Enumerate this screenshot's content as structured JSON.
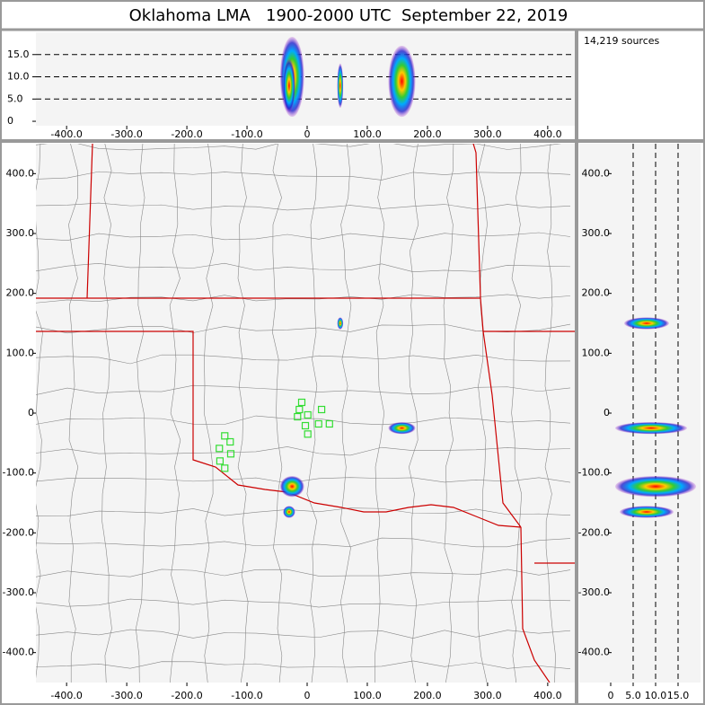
{
  "chart_data": {
    "type": "lma",
    "title": "Oklahoma LMA   1900-2000 UTC  September 22, 2019",
    "annotation": "14,219 sources",
    "xlim": [
      -451,
      445
    ],
    "ylim": [
      -450,
      450
    ],
    "top_altlim": [
      -1,
      20
    ],
    "side_altlim": [
      -7,
      20
    ],
    "xticks": [
      {
        "value": -400,
        "label": "-400.0"
      },
      {
        "value": -300,
        "label": "-300.0"
      },
      {
        "value": -200,
        "label": "-200.0"
      },
      {
        "value": -100,
        "label": "-100.0"
      },
      0,
      {
        "value": 100,
        "label": "100.0"
      },
      {
        "value": 200,
        "label": "200.0"
      },
      {
        "value": 300,
        "label": "300.0"
      },
      {
        "value": 400,
        "label": "400.0"
      }
    ],
    "yticks": [
      {
        "value": -400,
        "label": "-400.0"
      },
      {
        "value": -300,
        "label": "-300.0"
      },
      {
        "value": -200,
        "label": "-200.0"
      },
      {
        "value": -100,
        "label": "-100.0"
      },
      0,
      {
        "value": 100,
        "label": "100.0"
      },
      {
        "value": 200,
        "label": "200.0"
      },
      {
        "value": 300,
        "label": "300.0"
      },
      {
        "value": 400,
        "label": "400.0"
      }
    ],
    "altticks": [
      0,
      {
        "value": 5,
        "label": "5.0"
      },
      {
        "value": 10,
        "label": "10.0"
      },
      {
        "value": 15,
        "label": "15.0"
      }
    ],
    "alt_gridlines": [
      5,
      10,
      15
    ],
    "clusters": [
      {
        "xmin": -45,
        "xmax": -5,
        "ymin": -140,
        "ymax": -105,
        "altmin": 1,
        "altmax": 19
      },
      {
        "xmin": -40,
        "xmax": -20,
        "ymin": -175,
        "ymax": -155,
        "altmin": 2,
        "altmax": 14
      },
      {
        "xmin": 135,
        "xmax": 180,
        "ymin": -35,
        "ymax": -15,
        "altmin": 1,
        "altmax": 17
      },
      {
        "xmin": 50,
        "xmax": 60,
        "ymin": 140,
        "ymax": 160,
        "altmin": 3,
        "altmax": 13
      }
    ],
    "station_color": "#33dd33",
    "stations": [
      {
        "x": -9,
        "y": 18
      },
      {
        "x": -16,
        "y": -6
      },
      {
        "x": 1,
        "y": -3
      },
      {
        "x": 24,
        "y": 6
      },
      {
        "x": 19,
        "y": -18
      },
      {
        "x": 37,
        "y": -18
      },
      {
        "x": -3,
        "y": -21
      },
      {
        "x": 1,
        "y": -35
      },
      {
        "x": -13,
        "y": 6
      },
      {
        "x": -137,
        "y": -38
      },
      {
        "x": -128,
        "y": -48
      },
      {
        "x": -146,
        "y": -59
      },
      {
        "x": -127,
        "y": -68
      },
      {
        "x": -145,
        "y": -80
      },
      {
        "x": -137,
        "y": -92
      }
    ]
  }
}
